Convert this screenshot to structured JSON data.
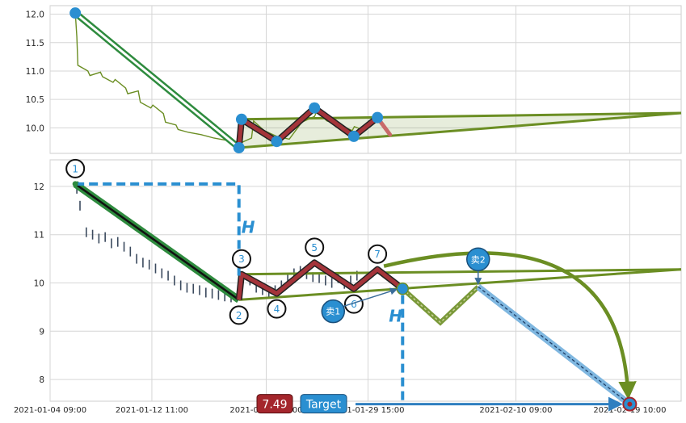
{
  "chart_data": [
    {
      "type": "line",
      "panel": "top",
      "ylim": [
        9.55,
        12.15
      ],
      "yticks": [
        10.0,
        10.5,
        11.0,
        11.5,
        12.0
      ],
      "ytick_labels": [
        "10.0",
        "10.5",
        "11.0",
        "11.5",
        "12.0"
      ],
      "xlim": [
        "2021-01-04 09:00",
        "2021-02-23 12:00"
      ],
      "grid": true,
      "price_series": {
        "color": "#6b8e23",
        "points": [
          [
            "2021-01-06 09:00",
            12.02
          ],
          [
            "2021-01-06 12:00",
            11.6
          ],
          [
            "2021-01-06 14:00",
            11.1
          ],
          [
            "2021-01-07 09:00",
            11.0
          ],
          [
            "2021-01-07 13:00",
            10.92
          ],
          [
            "2021-01-08 09:00",
            10.98
          ],
          [
            "2021-01-08 13:00",
            10.9
          ],
          [
            "2021-01-09 09:00",
            10.8
          ],
          [
            "2021-01-09 13:00",
            10.85
          ],
          [
            "2021-01-10 09:00",
            10.7
          ],
          [
            "2021-01-10 13:00",
            10.6
          ],
          [
            "2021-01-11 09:00",
            10.65
          ],
          [
            "2021-01-11 13:00",
            10.45
          ],
          [
            "2021-01-12 09:00",
            10.35
          ],
          [
            "2021-01-12 13:00",
            10.4
          ],
          [
            "2021-01-13 09:00",
            10.25
          ],
          [
            "2021-01-13 13:00",
            10.1
          ],
          [
            "2021-01-14 09:00",
            10.05
          ],
          [
            "2021-01-14 13:00",
            9.97
          ],
          [
            "2021-01-15 09:00",
            9.92
          ],
          [
            "2021-01-16 09:00",
            9.88
          ],
          [
            "2021-01-17 09:00",
            9.82
          ],
          [
            "2021-01-18 09:00",
            9.78
          ],
          [
            "2021-01-19 09:00",
            9.72
          ],
          [
            "2021-01-20 09:00",
            9.82
          ],
          [
            "2021-01-20 13:00",
            10.12
          ],
          [
            "2021-01-21 09:00",
            9.95
          ],
          [
            "2021-01-22 09:00",
            9.85
          ],
          [
            "2021-01-23 09:00",
            9.8
          ],
          [
            "2021-01-24 09:00",
            10.1
          ],
          [
            "2021-01-25 09:00",
            10.2
          ],
          [
            "2021-01-25 13:00",
            10.28
          ],
          [
            "2021-01-26 09:00",
            10.12
          ],
          [
            "2021-01-27 09:00",
            10.05
          ],
          [
            "2021-01-28 09:00",
            9.95
          ],
          [
            "2021-01-28 13:00",
            10.02
          ],
          [
            "2021-01-29 09:00",
            9.95
          ],
          [
            "2021-01-29 13:00",
            10.0
          ]
        ]
      },
      "zigzag": [
        [
          "2021-01-06 09:00",
          12.02
        ],
        [
          "2021-01-19 09:00",
          9.65
        ],
        [
          "2021-01-19 14:00",
          10.15
        ],
        [
          "2021-01-22 09:00",
          9.76
        ],
        [
          "2021-01-25 09:00",
          10.35
        ],
        [
          "2021-01-28 12:00",
          9.85
        ],
        [
          "2021-01-30 09:00",
          10.18
        ]
      ],
      "zigzag_tail": [
        [
          "2021-01-30 09:00",
          10.18
        ],
        [
          "2021-01-31 09:00",
          9.88
        ]
      ],
      "triangle_upper": [
        [
          "2021-01-19 14:00",
          10.15
        ],
        [
          "2021-02-23 12:00",
          10.26
        ]
      ],
      "triangle_lower": [
        [
          "2021-01-19 09:00",
          9.65
        ],
        [
          "2021-02-23 12:00",
          10.26
        ]
      ]
    },
    {
      "type": "line",
      "panel": "bottom",
      "ylim": [
        7.55,
        12.55
      ],
      "yticks": [
        8,
        9,
        10,
        11,
        12
      ],
      "ytick_labels": [
        "8",
        "9",
        "10",
        "11",
        "12"
      ],
      "xlim": [
        "2021-01-04 09:00",
        "2021-02-23 12:00"
      ],
      "xtick_labels": [
        "2021-01-04 09:00",
        "2021-01-12 11:00",
        "2021-01-21 13:00",
        "2021-01-29 15:00",
        "2021-02-10 09:00",
        "2021-02-19 10:00"
      ],
      "grid": true,
      "price_ticks": [
        [
          "2021-01-06 12:00",
          11.95
        ],
        [
          "2021-01-06 18:00",
          11.6
        ],
        [
          "2021-01-07 06:00",
          11.05
        ],
        [
          "2021-01-07 18:00",
          11.0
        ],
        [
          "2021-01-08 06:00",
          10.92
        ],
        [
          "2021-01-08 18:00",
          10.95
        ],
        [
          "2021-01-09 06:00",
          10.82
        ],
        [
          "2021-01-09 18:00",
          10.85
        ],
        [
          "2021-01-10 06:00",
          10.75
        ],
        [
          "2021-01-10 18:00",
          10.65
        ],
        [
          "2021-01-11 06:00",
          10.5
        ],
        [
          "2021-01-11 18:00",
          10.42
        ],
        [
          "2021-01-12 06:00",
          10.38
        ],
        [
          "2021-01-12 18:00",
          10.3
        ],
        [
          "2021-01-13 06:00",
          10.2
        ],
        [
          "2021-01-13 18:00",
          10.15
        ],
        [
          "2021-01-14 06:00",
          10.05
        ],
        [
          "2021-01-14 18:00",
          9.95
        ],
        [
          "2021-01-15 06:00",
          9.9
        ],
        [
          "2021-01-15 18:00",
          9.88
        ],
        [
          "2021-01-16 06:00",
          9.85
        ],
        [
          "2021-01-16 18:00",
          9.8
        ],
        [
          "2021-01-17 06:00",
          9.78
        ],
        [
          "2021-01-17 18:00",
          9.75
        ],
        [
          "2021-01-18 06:00",
          9.72
        ],
        [
          "2021-01-18 18:00",
          9.7
        ],
        [
          "2021-01-19 12:00",
          9.9
        ],
        [
          "2021-01-20 06:00",
          10.05
        ],
        [
          "2021-01-20 18:00",
          9.9
        ],
        [
          "2021-01-21 06:00",
          9.85
        ],
        [
          "2021-01-21 18:00",
          9.8
        ],
        [
          "2021-01-22 06:00",
          9.85
        ],
        [
          "2021-01-22 18:00",
          9.95
        ],
        [
          "2021-01-23 06:00",
          10.1
        ],
        [
          "2021-01-23 18:00",
          10.2
        ],
        [
          "2021-01-24 06:00",
          10.25
        ],
        [
          "2021-01-24 18:00",
          10.18
        ],
        [
          "2021-01-25 06:00",
          10.12
        ],
        [
          "2021-01-25 18:00",
          10.1
        ],
        [
          "2021-01-26 06:00",
          10.05
        ],
        [
          "2021-01-26 18:00",
          10.0
        ],
        [
          "2021-01-27 06:00",
          10.1
        ],
        [
          "2021-01-27 18:00",
          9.98
        ],
        [
          "2021-01-28 06:00",
          10.05
        ],
        [
          "2021-01-28 18:00",
          10.15
        ]
      ],
      "wave": [
        [
          "2021-01-06 09:00",
          12.05
        ],
        [
          "2021-01-19 09:00",
          9.65
        ],
        [
          "2021-01-19 14:00",
          10.18
        ],
        [
          "2021-01-22 09:00",
          9.78
        ],
        [
          "2021-01-25 09:00",
          10.42
        ],
        [
          "2021-01-28 12:00",
          9.88
        ],
        [
          "2021-01-30 09:00",
          10.28
        ],
        [
          "2021-02-01 09:00",
          9.88
        ]
      ],
      "wave_labels": [
        {
          "label": "1",
          "x": "2021-01-06 09:00",
          "y": 12.05,
          "pos": "above"
        },
        {
          "label": "2",
          "x": "2021-01-19 09:00",
          "y": 9.65,
          "pos": "below"
        },
        {
          "label": "3",
          "x": "2021-01-19 14:00",
          "y": 10.18,
          "pos": "above"
        },
        {
          "label": "4",
          "x": "2021-01-22 09:00",
          "y": 9.78,
          "pos": "below"
        },
        {
          "label": "5",
          "x": "2021-01-25 09:00",
          "y": 10.42,
          "pos": "above"
        },
        {
          "label": "6",
          "x": "2021-01-28 12:00",
          "y": 9.88,
          "pos": "below"
        },
        {
          "label": "7",
          "x": "2021-01-30 09:00",
          "y": 10.28,
          "pos": "above"
        }
      ],
      "triangle_upper": [
        [
          "2021-01-19 14:00",
          10.18
        ],
        [
          "2021-02-23 12:00",
          10.28
        ]
      ],
      "triangle_lower": [
        [
          "2021-01-19 09:00",
          9.65
        ],
        [
          "2021-02-23 12:00",
          10.28
        ]
      ],
      "projection": [
        [
          "2021-02-01 09:00",
          9.88
        ],
        [
          "2021-02-04 09:00",
          9.18
        ],
        [
          "2021-02-07 09:00",
          9.92
        ]
      ],
      "target_path": [
        [
          "2021-02-07 09:00",
          9.92
        ],
        [
          "2021-02-19 10:00",
          7.49
        ]
      ],
      "height_marker_1": {
        "from": [
          "2021-01-06 09:00",
          12.05
        ],
        "corner": [
          "2021-01-19 09:00",
          12.05
        ],
        "to": [
          "2021-01-19 09:00",
          10.15
        ],
        "label": "H"
      },
      "height_marker_2": {
        "from": [
          "2021-02-01 09:00",
          9.88
        ],
        "to": [
          "2021-02-01 09:00",
          7.49
        ],
        "label": "H"
      },
      "target_value": 7.49,
      "target_value_label": "7.49",
      "target_label": "Target",
      "sell_points": [
        {
          "label": "卖1",
          "x": "2021-02-01 09:00",
          "y": 9.88
        },
        {
          "label": "卖2",
          "x": "2021-02-07 09:00",
          "y": 9.92
        }
      ],
      "target_point": [
        "2021-02-19 10:00",
        7.49
      ]
    }
  ]
}
